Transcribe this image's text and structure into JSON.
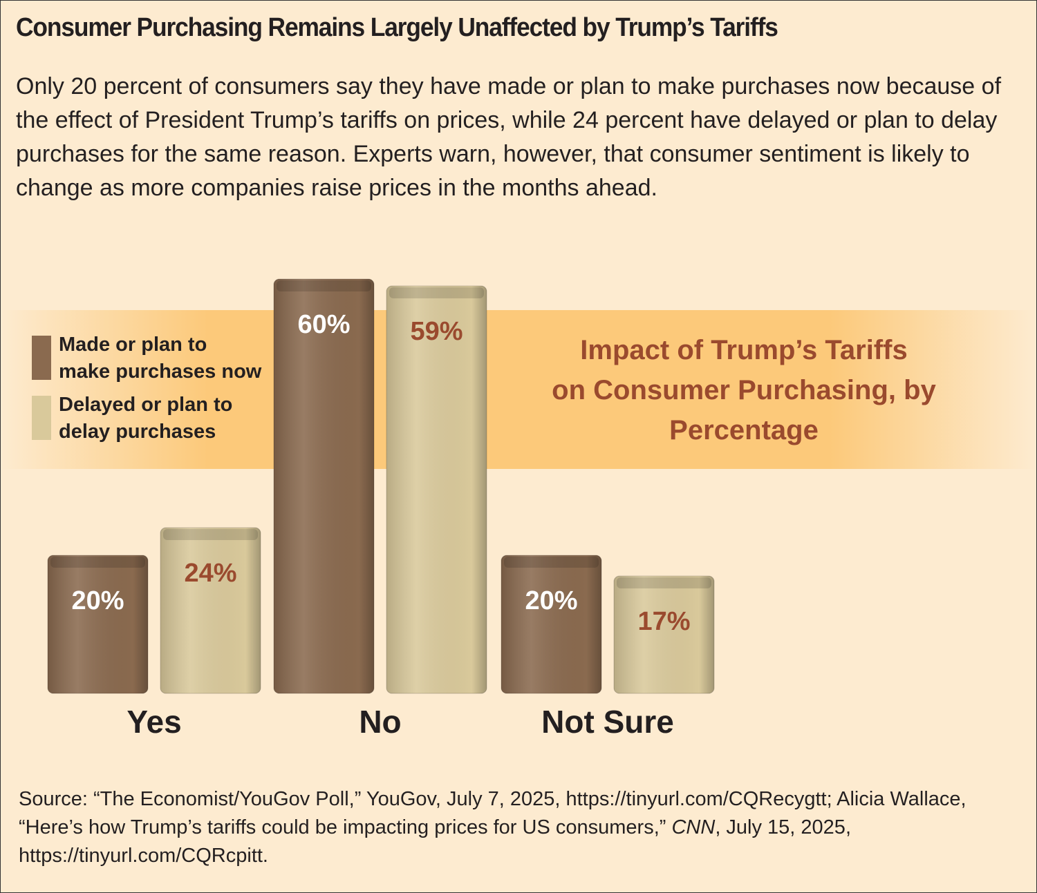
{
  "title": "Consumer Purchasing Remains Largely Unaffected by Trump’s Tariffs",
  "subtitle": "Only 20 percent of consumers say they have made or plan to make purchases now because of the effect of President Trump’s tariffs on prices, while 24 percent have delayed or plan to delay purchases for the same reason. Experts warn, however, that consumer sentiment is likely to change as more companies raise prices in the months ahead.",
  "chart_data": {
    "type": "bar",
    "title": "Impact of Trump’s Tariffs on Consumer Purchasing, by Percentage",
    "categories": [
      "Yes",
      "No",
      "Not Sure"
    ],
    "series": [
      {
        "name": "Made or plan to make purchases now",
        "color": "#8a6a4f",
        "values": [
          20,
          60,
          20
        ],
        "value_labels": [
          "20%",
          "60%",
          "20%"
        ]
      },
      {
        "name": "Delayed or plan to delay purchases",
        "color": "#d9c99b",
        "values": [
          24,
          59,
          17
        ],
        "value_labels": [
          "24%",
          "59%",
          "17%"
        ]
      }
    ]
  },
  "source": [
    "Source: “The Economist/YouGov Poll,” YouGov, July 7, 2025, https://tinyurl.com/CQRecygtt; Alicia Wallace, “Here’s how Trump’s tariffs could be impacting prices for US consumers,” ",
    "CNN",
    ", July 15, 2025, https://tinyurl.com/CQRcpitt."
  ]
}
